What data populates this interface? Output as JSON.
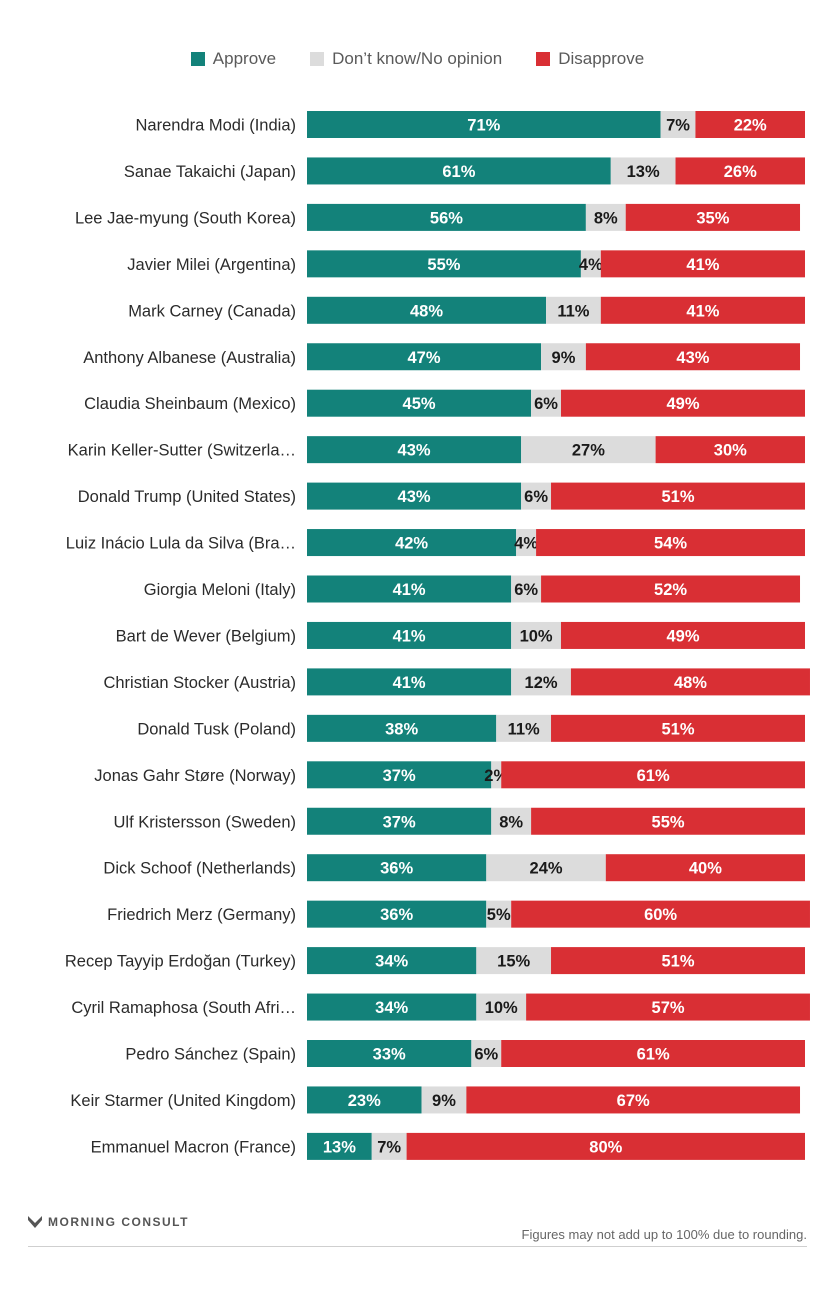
{
  "colors": {
    "approve": "#13827a",
    "neutral": "#dcdcdc",
    "disapprove": "#d92f34",
    "label_light": "#ffffff",
    "label_dark": "#1a1a1a",
    "name_text": "#2b2b2b"
  },
  "chart_data": {
    "type": "bar",
    "orientation": "horizontal",
    "stacked": true,
    "percent": true,
    "legend": [
      "Approve",
      "Don’t know/No opinion",
      "Disapprove"
    ],
    "legend_position": "top-center",
    "categories": [
      "Narendra Modi (India)",
      "Sanae Takaichi (Japan)",
      "Lee Jae-myung (South Korea)",
      "Javier Milei (Argentina)",
      "Mark Carney (Canada)",
      "Anthony Albanese (Australia)",
      "Claudia Sheinbaum (Mexico)",
      "Karin Keller-Sutter (Switzerla…",
      "Donald Trump (United States)",
      "Luiz Inácio Lula da Silva (Bra…",
      "Giorgia Meloni (Italy)",
      "Bart de Wever (Belgium)",
      "Christian Stocker (Austria)",
      "Donald Tusk (Poland)",
      "Jonas Gahr Støre (Norway)",
      "Ulf Kristersson (Sweden)",
      "Dick Schoof (Netherlands)",
      "Friedrich Merz (Germany)",
      "Recep Tayyip Erdoğan (Turkey)",
      "Cyril Ramaphosa (South Afri…",
      "Pedro Sánchez (Spain)",
      "Keir Starmer (United Kingdom)",
      "Emmanuel Macron (France)"
    ],
    "series": [
      {
        "name": "Approve",
        "values": [
          71,
          61,
          56,
          55,
          48,
          47,
          45,
          43,
          43,
          42,
          41,
          41,
          41,
          38,
          37,
          37,
          36,
          36,
          34,
          34,
          33,
          23,
          13
        ]
      },
      {
        "name": "Don’t know/No opinion",
        "values": [
          7,
          13,
          8,
          4,
          11,
          9,
          6,
          27,
          6,
          4,
          6,
          10,
          12,
          11,
          2,
          8,
          24,
          5,
          15,
          10,
          6,
          9,
          7
        ]
      },
      {
        "name": "Disapprove",
        "values": [
          22,
          26,
          35,
          41,
          41,
          43,
          49,
          30,
          51,
          54,
          52,
          49,
          48,
          51,
          61,
          55,
          40,
          60,
          51,
          57,
          61,
          67,
          80
        ]
      }
    ],
    "xlim": [
      0,
      100
    ]
  },
  "footer": {
    "brand": "MORNING CONSULT",
    "note": "Figures may not add up to 100% due to rounding."
  }
}
